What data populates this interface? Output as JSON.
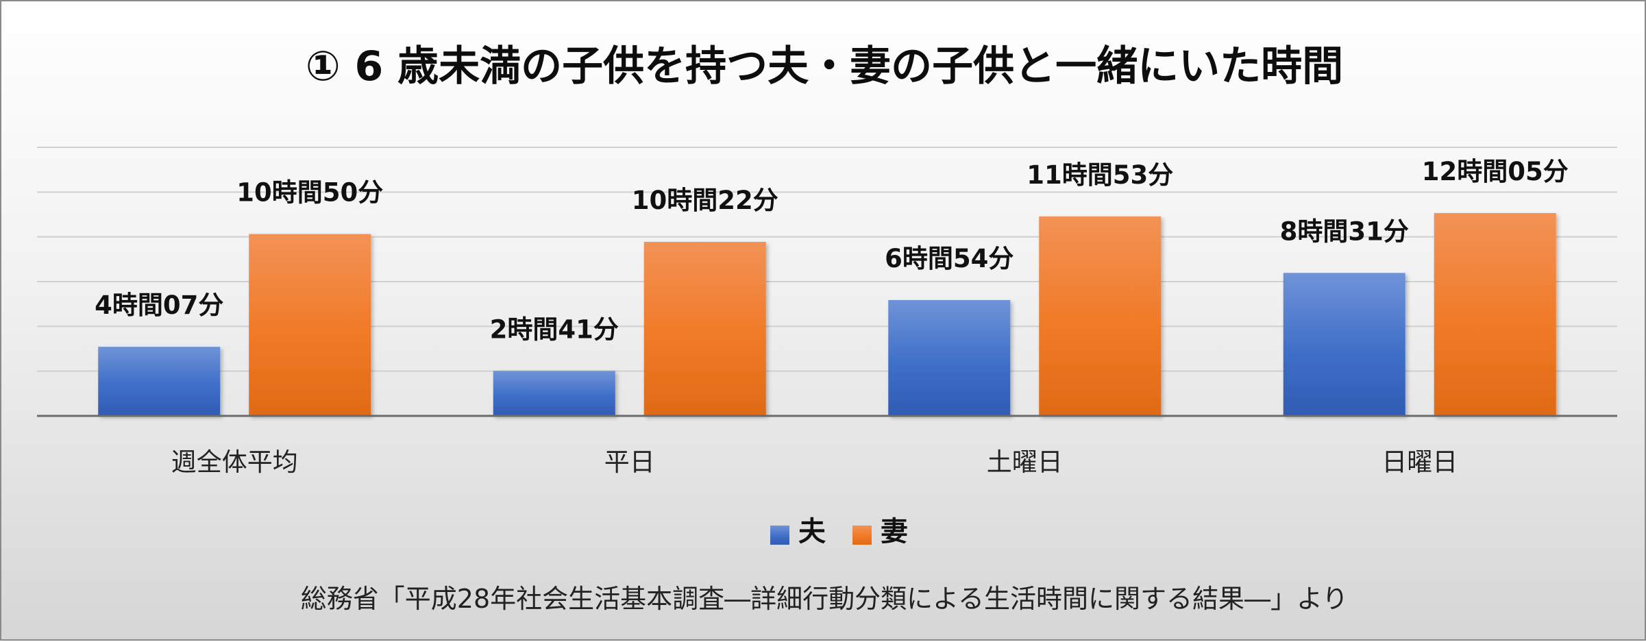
{
  "chart_data": {
    "type": "bar",
    "title": "① 6 歳未満の子供を持つ夫・妻の子供と一緒にいた時間",
    "categories": [
      "週全体平均",
      "平日",
      "土曜日",
      "日曜日"
    ],
    "unit": "minutes",
    "series": [
      {
        "name": "夫",
        "color": "#4472C4",
        "values": [
          247,
          161,
          414,
          511
        ],
        "labels": [
          "4時間07分",
          "2時間41分",
          "6時間54分",
          "8時間31分"
        ]
      },
      {
        "name": "妻",
        "color": "#ED7D31",
        "values": [
          650,
          622,
          713,
          725
        ],
        "labels": [
          "10時間50分",
          "10時間22分",
          "11時間53分",
          "12時間05分"
        ]
      }
    ],
    "ylim": [
      0,
      960
    ],
    "grid": true,
    "legend": "bottom",
    "source": "総務省「平成28年社会生活基本調査―詳細行動分類による生活時間に関する結果―」より"
  }
}
